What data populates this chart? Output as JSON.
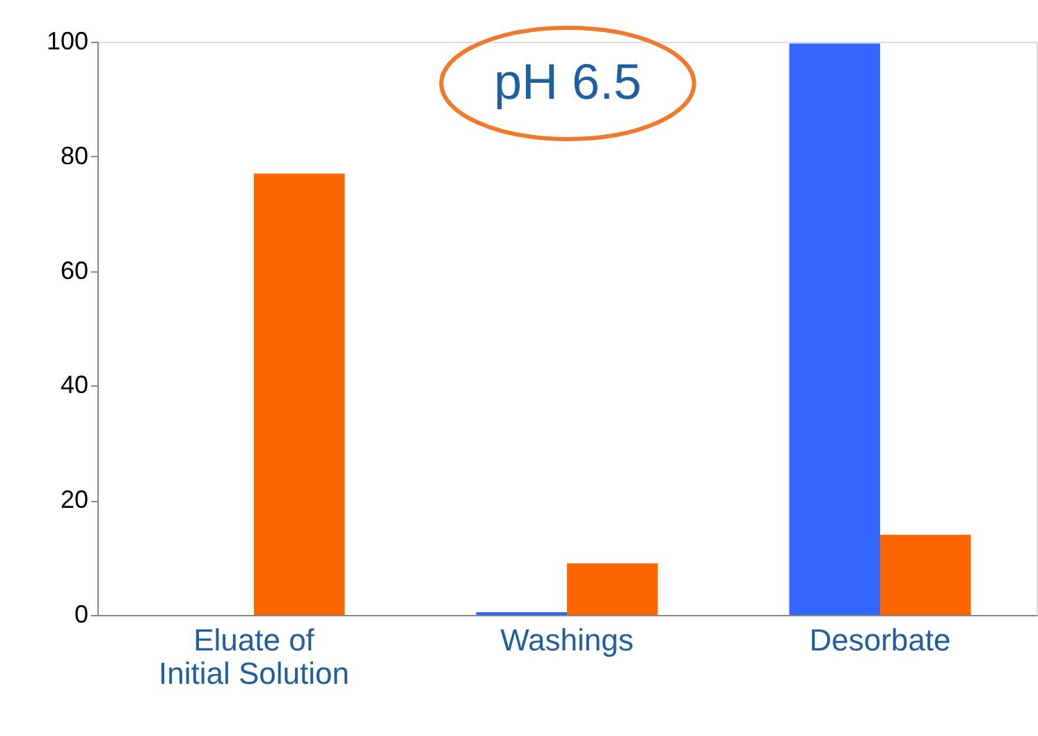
{
  "chart_data": {
    "type": "bar",
    "categories": [
      "Eluate of\nInitial Solution",
      "Washings",
      "Desorbate"
    ],
    "series": [
      {
        "color": "#3366ff",
        "values": [
          0,
          0.5,
          99.7
        ]
      },
      {
        "color": "#ff6600",
        "values": [
          77,
          9,
          14
        ]
      }
    ],
    "ylim": [
      0,
      100
    ],
    "yticks": [
      0,
      20,
      40,
      60,
      80,
      100
    ],
    "annotations": [
      "pH 6.5"
    ],
    "grid": false,
    "legend": false
  }
}
